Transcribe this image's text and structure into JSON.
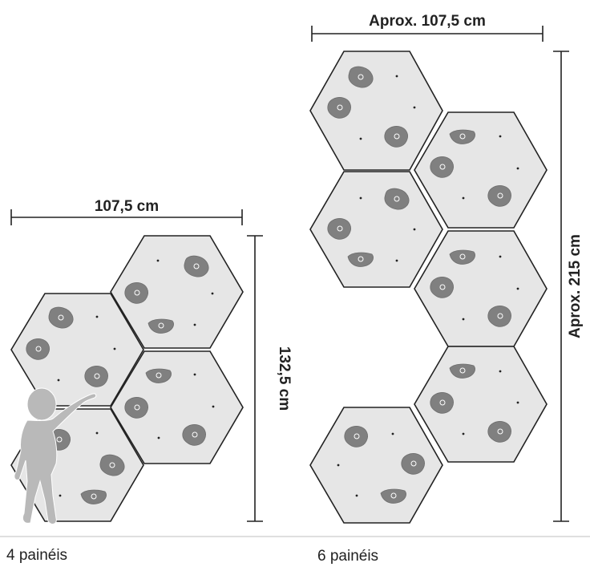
{
  "colors": {
    "panel_fill": "#e6e6e6",
    "panel_stroke": "#222222",
    "hold": "#808080",
    "child": "#b9b9b9",
    "text": "#222222",
    "floor": "#cccccc"
  },
  "left_config": {
    "caption": "4 painéis",
    "width_label": "107,5 cm",
    "height_label": "132,5 cm",
    "panel_count": 4
  },
  "right_config": {
    "caption": "6 painéis",
    "width_label": "Aprox. 107,5 cm",
    "height_label": "Aprox. 215 cm",
    "panel_count": 6
  },
  "icons": {
    "child": "child-silhouette-icon",
    "hold": "climbing-hold-icon"
  }
}
